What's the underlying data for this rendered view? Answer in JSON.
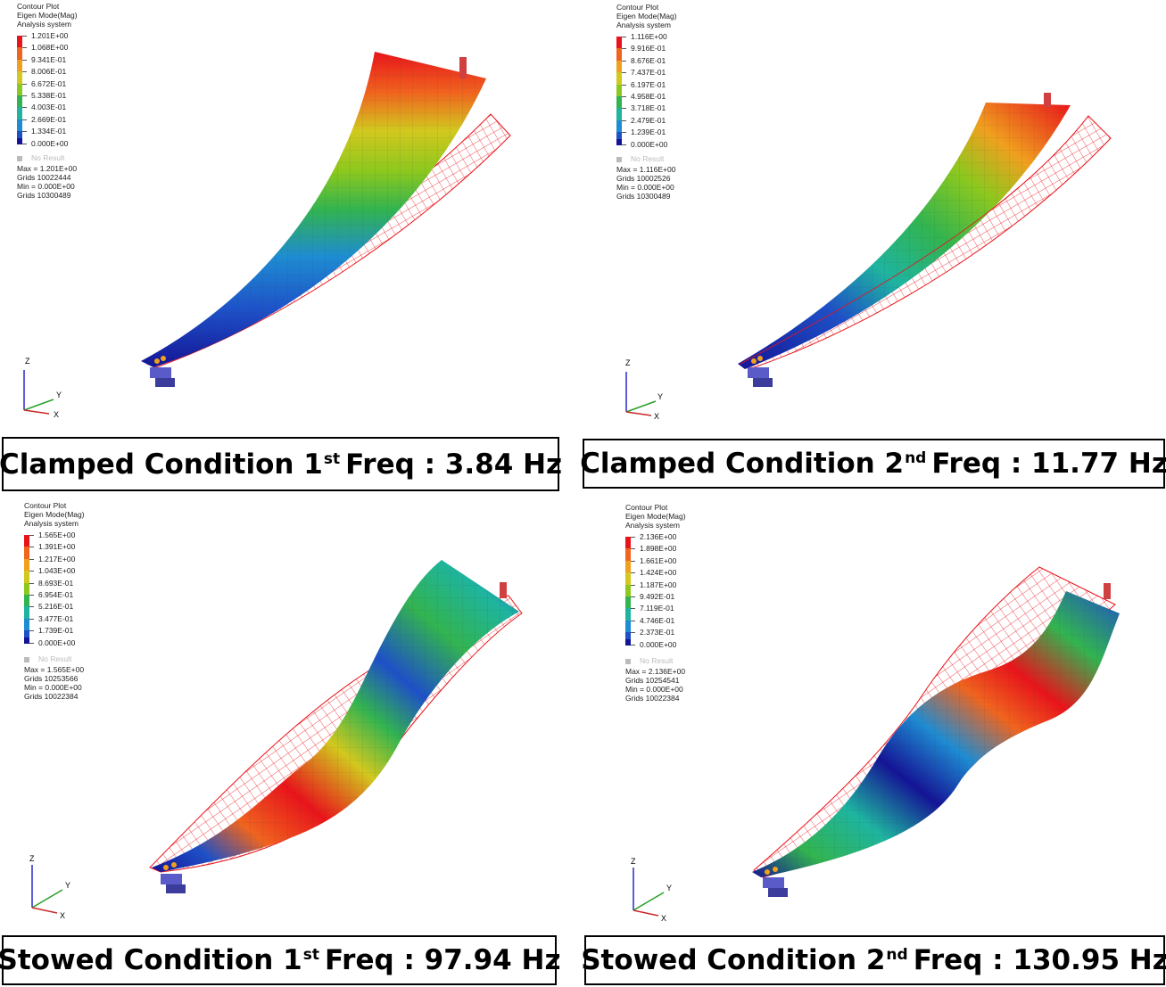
{
  "panels": [
    {
      "legend": {
        "title": "Contour Plot",
        "result": "Eigen Mode(Mag)",
        "system": "Analysis system",
        "values": [
          "1.201E+00",
          "1.068E+00",
          "9.341E-01",
          "8.006E-01",
          "6.672E-01",
          "5.338E-01",
          "4.003E-01",
          "2.669E-01",
          "1.334E-01",
          "0.000E+00"
        ],
        "no_result": "No Result",
        "max": "Max = 1.201E+00",
        "max_grid": "Grids 10022444",
        "min": "Min = 0.000E+00",
        "min_grid": "Grids 10300489"
      },
      "caption": {
        "pre": "Clamped Condition 1",
        "sup": "st",
        "post": "Freq : 3.84 Hz"
      }
    },
    {
      "legend": {
        "title": "Contour Plot",
        "result": "Eigen Mode(Mag)",
        "system": "Analysis system",
        "values": [
          "1.116E+00",
          "9.916E-01",
          "8.676E-01",
          "7.437E-01",
          "6.197E-01",
          "4.958E-01",
          "3.718E-01",
          "2.479E-01",
          "1.239E-01",
          "0.000E+00"
        ],
        "no_result": "No Result",
        "max": "Max = 1.116E+00",
        "max_grid": "Grids 10002526",
        "min": "Min = 0.000E+00",
        "min_grid": "Grids 10300489"
      },
      "caption": {
        "pre": "Clamped Condition 2",
        "sup": "nd",
        "post": "Freq : 11.77 Hz"
      }
    },
    {
      "legend": {
        "title": "Contour Plot",
        "result": "Eigen Mode(Mag)",
        "system": "Analysis system",
        "values": [
          "1.565E+00",
          "1.391E+00",
          "1.217E+00",
          "1.043E+00",
          "8.693E-01",
          "6.954E-01",
          "5.216E-01",
          "3.477E-01",
          "1.739E-01",
          "0.000E+00"
        ],
        "no_result": "No Result",
        "max": "Max = 1.565E+00",
        "max_grid": "Grids 10253566",
        "min": "Min = 0.000E+00",
        "min_grid": "Grids 10022384"
      },
      "caption": {
        "pre": "Stowed Condition 1",
        "sup": "st",
        "post": "Freq : 97.94 Hz"
      }
    },
    {
      "legend": {
        "title": "Contour Plot",
        "result": "Eigen Mode(Mag)",
        "system": "Analysis system",
        "values": [
          "2.136E+00",
          "1.898E+00",
          "1.661E+00",
          "1.424E+00",
          "1.187E+00",
          "9.492E-01",
          "7.119E-01",
          "4.746E-01",
          "2.373E-01",
          "0.000E+00"
        ],
        "no_result": "No Result",
        "max": "Max = 2.136E+00",
        "max_grid": "Grids 10254541",
        "min": "Min = 0.000E+00",
        "min_grid": "Grids 10022384"
      },
      "caption": {
        "pre": "Stowed Condition 2",
        "sup": "nd",
        "post": "Freq : 130.95 Hz"
      }
    }
  ],
  "axes": {
    "z": "Z",
    "y": "Y",
    "x": "X"
  },
  "colors": {
    "scale": [
      "#e8141b",
      "#f0641e",
      "#f0a01e",
      "#d2c81e",
      "#8cc81e",
      "#32b450",
      "#1eb4a0",
      "#1e8cd2",
      "#1e50c8",
      "#141496"
    ],
    "wireframe": "#e8141b"
  }
}
